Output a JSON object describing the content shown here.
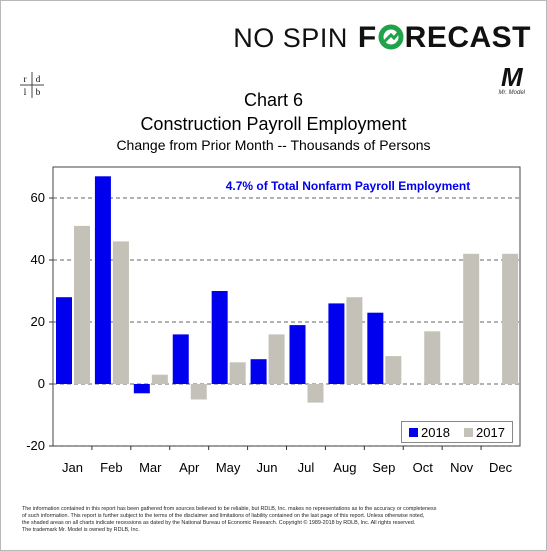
{
  "brand": {
    "text_a": "NO SPIN",
    "text_b_1": "F",
    "text_b_2": "RECAST",
    "logo_icon": "arrow-circle-o-icon",
    "mr_model_letter": "M",
    "mr_model_caption": "Mr. Model",
    "rdlb": [
      "r",
      "d",
      "l",
      "b"
    ]
  },
  "chart_data": {
    "type": "bar",
    "title": "Chart 6",
    "subtitle": "Construction Payroll Employment",
    "subtitle2": "Change from Prior Month -- Thousands of Persons",
    "annotation": "4.7% of Total Nonfarm Payroll Employment",
    "categories": [
      "Jan",
      "Feb",
      "Mar",
      "Apr",
      "May",
      "Jun",
      "Jul",
      "Aug",
      "Sep",
      "Oct",
      "Nov",
      "Dec"
    ],
    "series": [
      {
        "name": "2018",
        "color": "#0000ee",
        "values": [
          28,
          67,
          -3,
          16,
          30,
          8,
          19,
          26,
          23,
          null,
          null,
          null
        ]
      },
      {
        "name": "2017",
        "color": "#c4c1b8",
        "values": [
          51,
          46,
          3,
          -5,
          7,
          16,
          -6,
          28,
          9,
          17,
          42,
          42
        ]
      }
    ],
    "ylim": [
      -20,
      70
    ],
    "yticks": [
      "-20",
      "0",
      "20",
      "40",
      "60"
    ],
    "grid": "dashed horizontal",
    "legend_position": "bottom-right"
  },
  "footer": {
    "line1": "The information contained in this report has been gathered from sources believed to be reliable, but RDLB, Inc. makes no representations as to the accuracy or completeness",
    "line2": "of such information. This report is further subject to the terms of the disclaimer and limitations of liability contained on the last page of this report. Unless otherwise noted,",
    "line3": "the shaded areas on all charts indicate recessions as dated by the National Bureau of Economic Research. Copyright © 1989-2018 by RDLB, Inc. All rights reserved.",
    "line4": "The trademark Mr. Model is owned by RDLB, Inc."
  }
}
